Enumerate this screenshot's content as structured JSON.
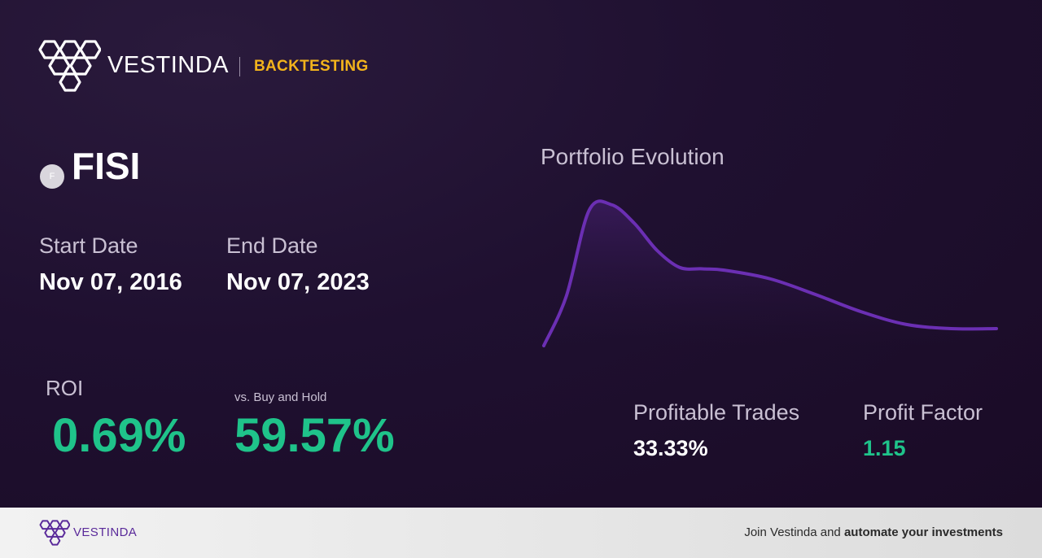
{
  "brand": {
    "name": "VESTINDA",
    "section": "BACKTESTING",
    "logo": "hexagon-cluster-icon"
  },
  "ticker": {
    "symbol": "FISI",
    "badge": "F"
  },
  "dates": {
    "start_label": "Start Date",
    "start_value": "Nov 07, 2016",
    "end_label": "End Date",
    "end_value": "Nov 07, 2023"
  },
  "metrics": {
    "roi_label": "ROI",
    "roi_value": "0.69%",
    "bh_label": "vs. Buy and Hold",
    "bh_value": "59.57%",
    "profitable_label": "Profitable Trades",
    "profitable_value": "33.33%",
    "factor_label": "Profit Factor",
    "factor_value": "1.15"
  },
  "chart": {
    "title": "Portfolio Evolution",
    "line_color": "#6b2fb3"
  },
  "chart_data": {
    "type": "area",
    "title": "Portfolio Evolution",
    "x": [
      0,
      0.05,
      0.1,
      0.15,
      0.2,
      0.25,
      0.3,
      0.35,
      0.4,
      0.5,
      0.6,
      0.7,
      0.8,
      0.9,
      1.0
    ],
    "values": [
      0,
      0.35,
      0.95,
      0.99,
      0.86,
      0.67,
      0.55,
      0.54,
      0.53,
      0.47,
      0.36,
      0.24,
      0.15,
      0.12,
      0.12
    ],
    "xlabel": "",
    "ylabel": ""
  },
  "footer": {
    "brand": "VESTINDA",
    "cta_prefix": "Join Vestinda and ",
    "cta_bold": "automate your investments"
  },
  "colors": {
    "accent": "#f2b31c",
    "positive": "#1fc38a",
    "purple": "#6b2fb3"
  }
}
